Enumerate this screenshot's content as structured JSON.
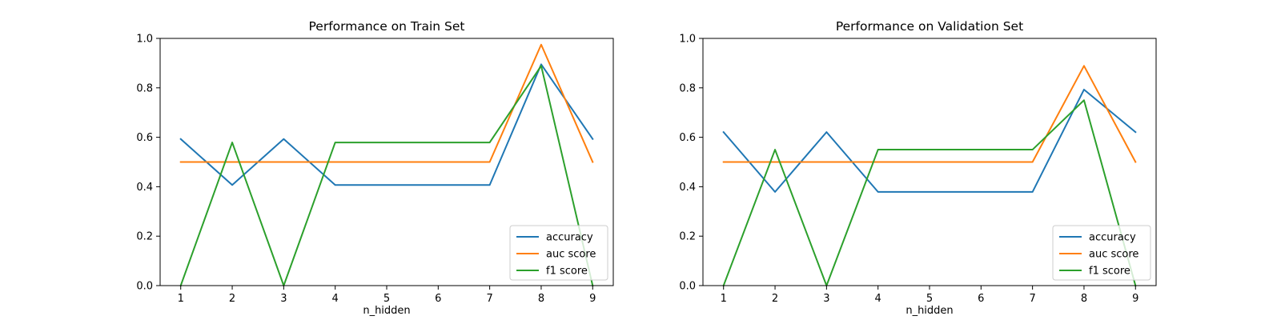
{
  "colors": {
    "accuracy": "#1f77b4",
    "auc score": "#ff7f0e",
    "f1 score": "#2ca02c"
  },
  "chart_data": [
    {
      "type": "line",
      "title": "Performance on Train Set",
      "xlabel": "n_hidden",
      "ylabel": "",
      "x": [
        1,
        2,
        3,
        4,
        5,
        6,
        7,
        8,
        9
      ],
      "xlim": [
        0.6,
        9.4
      ],
      "ylim": [
        0,
        1.0
      ],
      "xticks": [
        "1",
        "2",
        "3",
        "4",
        "5",
        "6",
        "7",
        "8",
        "9"
      ],
      "yticks": [
        "0.0",
        "0.2",
        "0.4",
        "0.6",
        "0.8",
        "1.0"
      ],
      "legend": "lower-right",
      "grid": false,
      "series": [
        {
          "name": "accuracy",
          "values": [
            0.593,
            0.407,
            0.593,
            0.407,
            0.407,
            0.407,
            0.407,
            0.895,
            0.593
          ]
        },
        {
          "name": "auc score",
          "values": [
            0.5,
            0.5,
            0.5,
            0.5,
            0.5,
            0.5,
            0.5,
            0.975,
            0.5
          ]
        },
        {
          "name": "f1 score",
          "values": [
            0.0,
            0.579,
            0.0,
            0.579,
            0.579,
            0.579,
            0.579,
            0.889,
            0.0
          ]
        }
      ]
    },
    {
      "type": "line",
      "title": "Performance on Validation Set",
      "xlabel": "n_hidden",
      "ylabel": "",
      "x": [
        1,
        2,
        3,
        4,
        5,
        6,
        7,
        8,
        9
      ],
      "xlim": [
        0.6,
        9.4
      ],
      "ylim": [
        0,
        1.0
      ],
      "xticks": [
        "1",
        "2",
        "3",
        "4",
        "5",
        "6",
        "7",
        "8",
        "9"
      ],
      "yticks": [
        "0.0",
        "0.2",
        "0.4",
        "0.6",
        "0.8",
        "1.0"
      ],
      "legend": "lower-right",
      "grid": false,
      "series": [
        {
          "name": "accuracy",
          "values": [
            0.621,
            0.379,
            0.621,
            0.379,
            0.379,
            0.379,
            0.379,
            0.793,
            0.621
          ]
        },
        {
          "name": "auc score",
          "values": [
            0.5,
            0.5,
            0.5,
            0.5,
            0.5,
            0.5,
            0.5,
            0.889,
            0.5
          ]
        },
        {
          "name": "f1 score",
          "values": [
            0.0,
            0.55,
            0.0,
            0.55,
            0.55,
            0.55,
            0.55,
            0.75,
            0.0
          ]
        }
      ]
    }
  ]
}
